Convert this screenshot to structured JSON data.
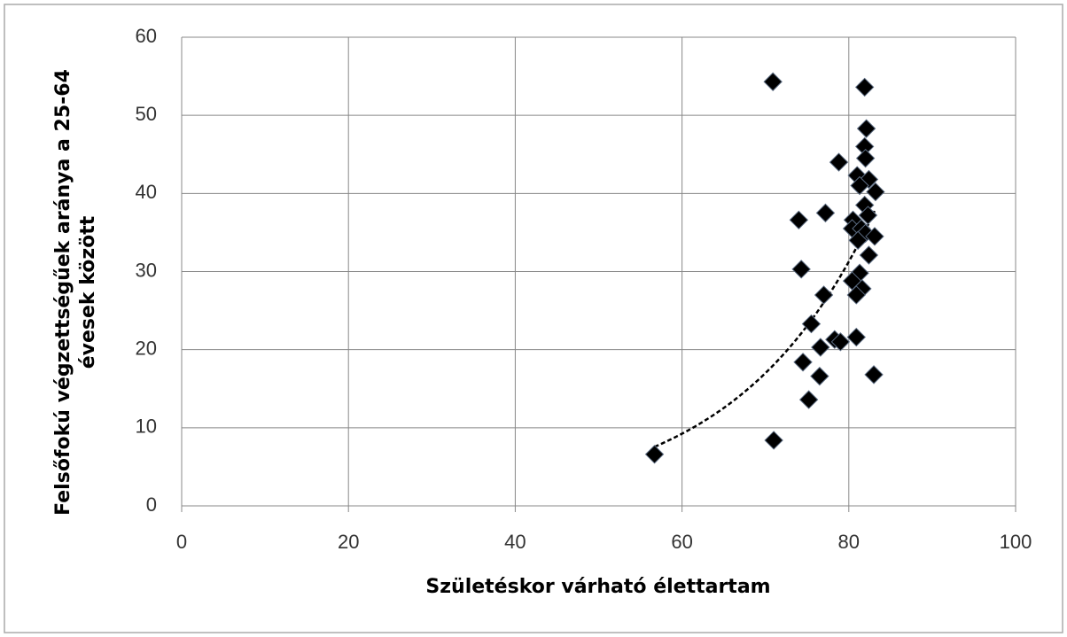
{
  "chart_data": {
    "type": "scatter",
    "xlabel": "Születéskor várható élettartam",
    "ylabel": [
      "Felsőfokú végzettségűek aránya a 25-64",
      "évesek között"
    ],
    "x": [
      56.7,
      71.0,
      70.9,
      81.9,
      82.1,
      81.9,
      82.0,
      78.8,
      81.0,
      82.4,
      81.3,
      83.2,
      81.9,
      82.3,
      77.2,
      74.0,
      80.5,
      80.4,
      81.5,
      82.0,
      83.1,
      81.1,
      82.4,
      74.3,
      81.3,
      80.4,
      81.6,
      80.9,
      77.0,
      75.5,
      78.3,
      79.0,
      80.9,
      76.6,
      74.5,
      76.5,
      83.0,
      75.2
    ],
    "values": [
      6.6,
      8.4,
      54.3,
      53.6,
      48.3,
      46.0,
      44.5,
      44.0,
      42.3,
      41.8,
      41.0,
      40.2,
      38.5,
      37.2,
      37.5,
      36.6,
      36.6,
      35.5,
      35.5,
      34.9,
      34.5,
      34.0,
      32.1,
      30.3,
      29.8,
      28.8,
      27.8,
      27.0,
      27.0,
      23.3,
      21.3,
      21.0,
      21.6,
      20.3,
      18.4,
      16.6,
      16.8,
      13.6
    ],
    "color": "#000000",
    "trendline": "exponential",
    "xlim": [
      0,
      100
    ],
    "xticks": [
      0,
      20,
      40,
      60,
      80,
      100
    ],
    "ylim": [
      0,
      60
    ],
    "yticks": [
      0,
      10,
      20,
      30,
      40,
      50,
      60
    ],
    "grid": true
  }
}
